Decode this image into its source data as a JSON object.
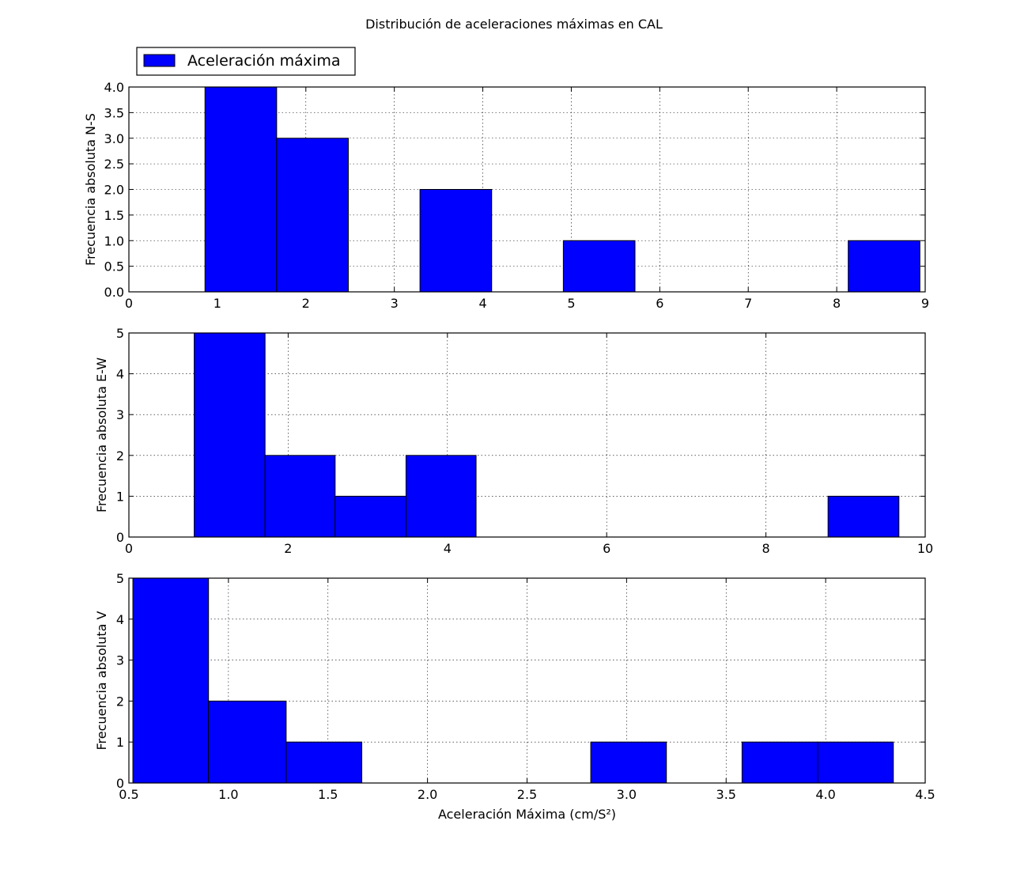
{
  "figure": {
    "title": "Distribución de aceleraciones máximas en CAL",
    "legend": {
      "label": "Aceleración máxima",
      "color": "#0000ff",
      "placement": "upper-left"
    }
  },
  "chart_data": [
    {
      "type": "bar",
      "ylabel": "Frecuencia absoluta N-S",
      "xlabel": "",
      "xlim": [
        0,
        9
      ],
      "ylim": [
        0,
        4
      ],
      "xticks": [
        "0",
        "1",
        "2",
        "3",
        "4",
        "5",
        "6",
        "7",
        "8",
        "9"
      ],
      "yticks": [
        "0.0",
        "0.5",
        "1.0",
        "1.5",
        "2.0",
        "2.5",
        "3.0",
        "3.5",
        "4.0"
      ],
      "grid": true,
      "bins": [
        {
          "x0": 0.86,
          "x1": 1.67,
          "count": 4
        },
        {
          "x0": 1.67,
          "x1": 2.48,
          "count": 3
        },
        {
          "x0": 3.29,
          "x1": 4.1,
          "count": 2
        },
        {
          "x0": 4.91,
          "x1": 5.72,
          "count": 1
        },
        {
          "x0": 8.13,
          "x1": 8.94,
          "count": 1
        }
      ]
    },
    {
      "type": "bar",
      "ylabel": "Frecuencia absoluta E-W",
      "xlabel": "",
      "xlim": [
        0,
        10
      ],
      "ylim": [
        0,
        5
      ],
      "xticks": [
        "0",
        "2",
        "4",
        "6",
        "8",
        "10"
      ],
      "yticks": [
        "0",
        "1",
        "2",
        "3",
        "4",
        "5"
      ],
      "grid": true,
      "bins": [
        {
          "x0": 0.82,
          "x1": 1.71,
          "count": 5
        },
        {
          "x0": 1.71,
          "x1": 2.59,
          "count": 2
        },
        {
          "x0": 2.59,
          "x1": 3.48,
          "count": 1
        },
        {
          "x0": 3.48,
          "x1": 4.36,
          "count": 2
        },
        {
          "x0": 8.78,
          "x1": 9.67,
          "count": 1
        }
      ]
    },
    {
      "type": "bar",
      "ylabel": "Frecuencia absoluta V",
      "xlabel": "Aceleración Máxima (cm/S²)",
      "xlim": [
        0.5,
        4.5
      ],
      "ylim": [
        0,
        5
      ],
      "xticks": [
        "0.5",
        "1.0",
        "1.5",
        "2.0",
        "2.5",
        "3.0",
        "3.5",
        "4.0",
        "4.5"
      ],
      "yticks": [
        "0",
        "1",
        "2",
        "3",
        "4",
        "5"
      ],
      "grid": true,
      "bins": [
        {
          "x0": 0.52,
          "x1": 0.9,
          "count": 5
        },
        {
          "x0": 0.9,
          "x1": 1.29,
          "count": 2
        },
        {
          "x0": 1.29,
          "x1": 1.67,
          "count": 1
        },
        {
          "x0": 2.82,
          "x1": 3.2,
          "count": 1
        },
        {
          "x0": 3.58,
          "x1": 3.96,
          "count": 1
        },
        {
          "x0": 3.96,
          "x1": 4.34,
          "count": 1
        }
      ]
    }
  ]
}
